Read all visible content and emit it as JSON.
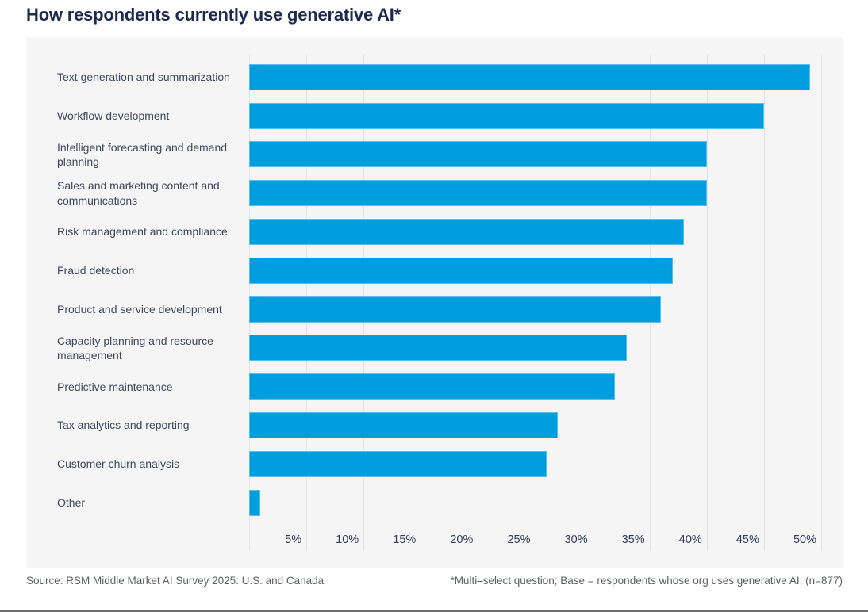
{
  "title": "How respondents currently use generative AI*",
  "chart_data": {
    "type": "bar",
    "orientation": "horizontal",
    "title": "How respondents currently use generative AI*",
    "categories": [
      "Text generation and summarization",
      "Workflow development",
      "Intelligent forecasting and demand planning",
      "Sales and marketing content and communications",
      "Risk management and compliance",
      "Fraud detection",
      "Product and service development",
      "Capacity planning and resource management",
      "Predictive maintenance",
      "Tax analytics and reporting",
      "Customer churn analysis",
      "Other"
    ],
    "values": [
      49,
      45,
      40,
      40,
      38,
      37,
      36,
      33,
      32,
      27,
      26,
      1
    ],
    "unit": "%",
    "xlim": [
      0,
      50
    ],
    "x_ticks": [
      "5%",
      "10%",
      "15%",
      "20%",
      "25%",
      "30%",
      "35%",
      "40%",
      "45%",
      "50%"
    ],
    "grid": "vertical-gridlines-on",
    "legend": "none",
    "bar_color": "#009DDF"
  },
  "footer": {
    "source": "Source: RSM Middle Market AI Survey 2025: U.S. and Canada",
    "note": "*Multi–select question; Base = respondents whose org uses generative AI; (n=877)"
  },
  "colors": {
    "bar": "#009DDF",
    "title_text": "#1B2A4E",
    "panel_background": "#F5F5F5",
    "gridline": "#E3E3E3",
    "category_text": "#3D485E",
    "tick_text": "#2E3D5C",
    "footer_text": "#5C5F63",
    "bottom_rule": "#6E6E6E"
  }
}
